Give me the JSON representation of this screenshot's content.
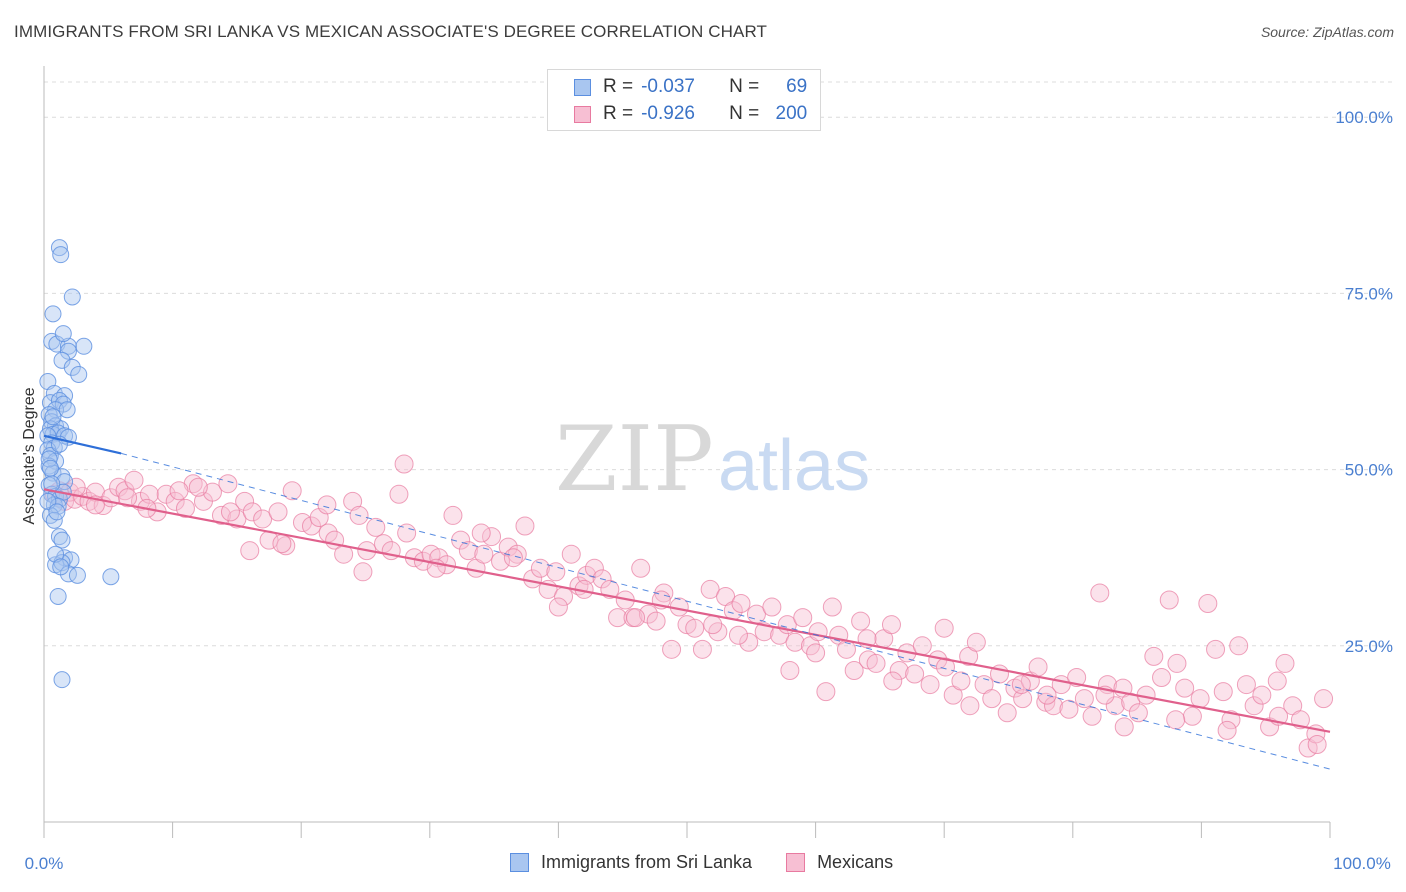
{
  "title": "IMMIGRANTS FROM SRI LANKA VS MEXICAN ASSOCIATE'S DEGREE CORRELATION CHART",
  "source": "Source: ZipAtlas.com",
  "watermark": {
    "zip": "ZIP",
    "atlas": "atlas"
  },
  "legend": {
    "r_label": "R =",
    "n_label": "N =",
    "series1": {
      "r": "-0.037",
      "n": "69"
    },
    "series2": {
      "r": "-0.926",
      "n": "200"
    }
  },
  "colors": {
    "blue": "#5b8fe0",
    "blue_fill": "#a9c6f0",
    "blue_line": "#2e6fd8",
    "pink": "#e87aa0",
    "pink_fill": "#f7bfd3",
    "pink_line": "#e0608c",
    "tick": "#4a7fd0",
    "grid": "#dcdcdc"
  },
  "chart_data": {
    "type": "scatter",
    "title": "IMMIGRANTS FROM SRI LANKA VS MEXICAN ASSOCIATE'S DEGREE CORRELATION CHART",
    "xlabel": "",
    "ylabel": "Associate's Degree",
    "xlim": [
      0,
      100
    ],
    "ylim": [
      0,
      105
    ],
    "x_tick_labels": [
      "0.0%",
      "100.0%"
    ],
    "y_ticks": [
      25,
      50,
      75,
      100
    ],
    "y_tick_labels": [
      "25.0%",
      "50.0%",
      "75.0%",
      "100.0%"
    ],
    "legend": [
      "Immigrants from Sri Lanka",
      "Mexicans"
    ],
    "series": [
      {
        "name": "Immigrants from Sri Lanka",
        "r": -0.037,
        "n": 69,
        "trend": {
          "x": [
            0,
            6
          ],
          "y": [
            54.8,
            52.3
          ]
        },
        "points": [
          [
            1.2,
            81.5
          ],
          [
            1.3,
            80.5
          ],
          [
            2.2,
            74.5
          ],
          [
            0.7,
            72.1
          ],
          [
            0.6,
            68.2
          ],
          [
            1.0,
            67.8
          ],
          [
            1.9,
            67.5
          ],
          [
            3.1,
            67.5
          ],
          [
            1.5,
            69.3
          ],
          [
            1.9,
            66.8
          ],
          [
            1.4,
            65.5
          ],
          [
            2.2,
            64.5
          ],
          [
            2.7,
            63.5
          ],
          [
            0.3,
            62.5
          ],
          [
            0.8,
            60.8
          ],
          [
            1.6,
            60.5
          ],
          [
            0.5,
            59.5
          ],
          [
            1.2,
            59.8
          ],
          [
            1.5,
            59.3
          ],
          [
            0.9,
            58.5
          ],
          [
            0.4,
            57.8
          ],
          [
            0.6,
            56.8
          ],
          [
            0.9,
            56.2
          ],
          [
            1.3,
            55.8
          ],
          [
            0.5,
            55.8
          ],
          [
            0.7,
            55.0
          ],
          [
            1.1,
            55.2
          ],
          [
            1.6,
            54.8
          ],
          [
            1.9,
            54.6
          ],
          [
            0.3,
            54.8
          ],
          [
            0.6,
            53.8
          ],
          [
            0.8,
            53.1
          ],
          [
            0.3,
            52.8
          ],
          [
            0.5,
            52.0
          ],
          [
            0.9,
            51.2
          ],
          [
            0.4,
            50.5
          ],
          [
            0.7,
            49.5
          ],
          [
            1.4,
            49.0
          ],
          [
            1.6,
            48.3
          ],
          [
            0.4,
            47.8
          ],
          [
            0.6,
            46.5
          ],
          [
            0.9,
            46.2
          ],
          [
            1.2,
            45.8
          ],
          [
            1.5,
            46.8
          ],
          [
            0.8,
            45.0
          ],
          [
            1.1,
            44.8
          ],
          [
            0.5,
            43.5
          ],
          [
            0.8,
            42.8
          ],
          [
            1.2,
            40.5
          ],
          [
            1.4,
            40.0
          ],
          [
            1.6,
            37.5
          ],
          [
            2.1,
            37.2
          ],
          [
            0.9,
            36.5
          ],
          [
            1.4,
            36.8
          ],
          [
            1.9,
            35.2
          ],
          [
            2.6,
            35.0
          ],
          [
            1.1,
            32.0
          ],
          [
            5.2,
            34.8
          ],
          [
            1.4,
            20.2
          ],
          [
            0.6,
            48.0
          ],
          [
            0.3,
            45.5
          ],
          [
            1.0,
            44.0
          ],
          [
            0.4,
            51.5
          ],
          [
            0.7,
            57.5
          ],
          [
            1.2,
            53.6
          ],
          [
            0.5,
            50.2
          ],
          [
            1.8,
            58.5
          ],
          [
            0.9,
            38.0
          ],
          [
            1.3,
            36.2
          ]
        ]
      },
      {
        "name": "Mexicans",
        "r": -0.926,
        "n": 200,
        "trend": {
          "x": [
            0,
            100
          ],
          "y": [
            47.2,
            12.8
          ]
        },
        "points": [
          [
            0.8,
            46.5
          ],
          [
            1.2,
            47.0
          ],
          [
            1.6,
            45.5
          ],
          [
            2.0,
            46.8
          ],
          [
            2.4,
            45.8
          ],
          [
            3.0,
            46.2
          ],
          [
            3.5,
            45.5
          ],
          [
            4.0,
            46.8
          ],
          [
            4.6,
            44.9
          ],
          [
            5.2,
            46.0
          ],
          [
            5.8,
            47.5
          ],
          [
            6.3,
            47.0
          ],
          [
            7.0,
            48.5
          ],
          [
            7.5,
            45.5
          ],
          [
            8.2,
            46.5
          ],
          [
            8.8,
            44.0
          ],
          [
            9.5,
            46.5
          ],
          [
            10.2,
            45.5
          ],
          [
            11.0,
            44.5
          ],
          [
            11.6,
            48.0
          ],
          [
            12.4,
            45.5
          ],
          [
            13.1,
            46.8
          ],
          [
            13.8,
            43.5
          ],
          [
            14.3,
            48.0
          ],
          [
            15.0,
            43.0
          ],
          [
            15.6,
            45.5
          ],
          [
            16.2,
            44.0
          ],
          [
            17.0,
            43.0
          ],
          [
            17.5,
            40.0
          ],
          [
            18.2,
            44.0
          ],
          [
            18.8,
            39.2
          ],
          [
            19.3,
            47.0
          ],
          [
            20.1,
            42.5
          ],
          [
            20.8,
            42.0
          ],
          [
            21.4,
            43.2
          ],
          [
            22.1,
            41.0
          ],
          [
            22.6,
            40.0
          ],
          [
            23.3,
            38.0
          ],
          [
            24.0,
            45.5
          ],
          [
            24.5,
            43.5
          ],
          [
            25.1,
            38.5
          ],
          [
            25.8,
            41.8
          ],
          [
            26.4,
            39.5
          ],
          [
            27.0,
            38.5
          ],
          [
            27.6,
            46.5
          ],
          [
            28.2,
            41.0
          ],
          [
            28.8,
            37.5
          ],
          [
            29.5,
            37.0
          ],
          [
            30.1,
            38.0
          ],
          [
            30.7,
            37.5
          ],
          [
            31.3,
            36.5
          ],
          [
            31.8,
            43.5
          ],
          [
            32.4,
            40.0
          ],
          [
            33.0,
            38.5
          ],
          [
            33.6,
            36.0
          ],
          [
            34.2,
            38.0
          ],
          [
            34.8,
            40.5
          ],
          [
            35.5,
            37.0
          ],
          [
            36.1,
            39.0
          ],
          [
            36.8,
            38.0
          ],
          [
            37.4,
            42.0
          ],
          [
            38.0,
            34.5
          ],
          [
            38.6,
            36.0
          ],
          [
            39.2,
            33.0
          ],
          [
            39.8,
            35.5
          ],
          [
            40.4,
            32.0
          ],
          [
            41.0,
            38.0
          ],
          [
            41.6,
            33.5
          ],
          [
            42.2,
            35.0
          ],
          [
            42.8,
            36.0
          ],
          [
            43.4,
            34.5
          ],
          [
            44.0,
            33.0
          ],
          [
            44.6,
            29.0
          ],
          [
            45.2,
            31.5
          ],
          [
            45.8,
            29.0
          ],
          [
            46.4,
            36.0
          ],
          [
            47.0,
            29.5
          ],
          [
            47.6,
            28.5
          ],
          [
            48.2,
            32.5
          ],
          [
            48.8,
            24.5
          ],
          [
            49.4,
            30.5
          ],
          [
            50.0,
            28.0
          ],
          [
            50.6,
            27.5
          ],
          [
            51.2,
            24.5
          ],
          [
            51.8,
            33.0
          ],
          [
            52.4,
            27.0
          ],
          [
            53.0,
            32.0
          ],
          [
            53.6,
            30.0
          ],
          [
            54.2,
            31.0
          ],
          [
            54.8,
            25.5
          ],
          [
            55.4,
            29.5
          ],
          [
            56.0,
            27.0
          ],
          [
            56.6,
            30.5
          ],
          [
            57.2,
            26.5
          ],
          [
            57.8,
            28.0
          ],
          [
            58.4,
            25.5
          ],
          [
            59.0,
            29.0
          ],
          [
            59.6,
            25.0
          ],
          [
            60.2,
            27.0
          ],
          [
            60.8,
            18.5
          ],
          [
            61.3,
            30.5
          ],
          [
            61.8,
            26.5
          ],
          [
            62.4,
            24.5
          ],
          [
            63.0,
            21.5
          ],
          [
            63.5,
            28.5
          ],
          [
            64.1,
            23.0
          ],
          [
            64.7,
            22.5
          ],
          [
            65.3,
            26.0
          ],
          [
            65.9,
            28.0
          ],
          [
            66.5,
            21.5
          ],
          [
            67.1,
            24.0
          ],
          [
            67.7,
            21.0
          ],
          [
            68.3,
            25.0
          ],
          [
            68.9,
            19.5
          ],
          [
            69.5,
            23.0
          ],
          [
            70.1,
            22.0
          ],
          [
            70.7,
            18.0
          ],
          [
            71.3,
            20.0
          ],
          [
            71.9,
            23.5
          ],
          [
            72.5,
            25.5
          ],
          [
            73.1,
            19.5
          ],
          [
            73.7,
            17.5
          ],
          [
            74.3,
            21.0
          ],
          [
            74.9,
            15.5
          ],
          [
            75.5,
            19.0
          ],
          [
            76.1,
            17.5
          ],
          [
            76.7,
            20.0
          ],
          [
            77.3,
            22.0
          ],
          [
            77.9,
            17.0
          ],
          [
            78.5,
            16.5
          ],
          [
            79.1,
            19.5
          ],
          [
            79.7,
            16.0
          ],
          [
            80.3,
            20.5
          ],
          [
            80.9,
            17.5
          ],
          [
            81.5,
            15.0
          ],
          [
            82.1,
            32.5
          ],
          [
            82.7,
            19.5
          ],
          [
            83.3,
            16.5
          ],
          [
            83.9,
            19.0
          ],
          [
            84.5,
            17.0
          ],
          [
            85.1,
            15.5
          ],
          [
            85.7,
            18.0
          ],
          [
            86.3,
            23.5
          ],
          [
            86.9,
            20.5
          ],
          [
            87.5,
            31.5
          ],
          [
            88.1,
            22.5
          ],
          [
            88.7,
            19.0
          ],
          [
            89.3,
            15.0
          ],
          [
            89.9,
            17.5
          ],
          [
            90.5,
            31.0
          ],
          [
            91.1,
            24.5
          ],
          [
            91.7,
            18.5
          ],
          [
            92.3,
            14.5
          ],
          [
            92.9,
            25.0
          ],
          [
            93.5,
            19.5
          ],
          [
            94.1,
            16.5
          ],
          [
            94.7,
            18.0
          ],
          [
            95.3,
            13.5
          ],
          [
            95.9,
            20.0
          ],
          [
            96.5,
            22.5
          ],
          [
            97.1,
            16.5
          ],
          [
            97.7,
            14.5
          ],
          [
            98.3,
            10.5
          ],
          [
            98.9,
            12.5
          ],
          [
            99.5,
            17.5
          ],
          [
            82.5,
            18.0
          ],
          [
            76.0,
            19.5
          ],
          [
            70.0,
            27.5
          ],
          [
            64.0,
            26.0
          ],
          [
            58.0,
            21.5
          ],
          [
            52.0,
            28.0
          ],
          [
            46.0,
            29.0
          ],
          [
            40.0,
            30.5
          ],
          [
            34.0,
            41.0
          ],
          [
            28.0,
            50.8
          ],
          [
            22.0,
            45.0
          ],
          [
            16.0,
            38.5
          ],
          [
            12.0,
            47.5
          ],
          [
            8.0,
            44.5
          ],
          [
            4.0,
            45.0
          ],
          [
            2.5,
            47.5
          ],
          [
            6.5,
            46.0
          ],
          [
            10.5,
            47.0
          ],
          [
            14.5,
            44.0
          ],
          [
            18.5,
            39.5
          ],
          [
            24.8,
            35.5
          ],
          [
            30.5,
            36.0
          ],
          [
            36.5,
            37.5
          ],
          [
            42.0,
            33.0
          ],
          [
            48.0,
            31.5
          ],
          [
            54.0,
            26.5
          ],
          [
            60.0,
            24.0
          ],
          [
            66.0,
            20.0
          ],
          [
            72.0,
            16.5
          ],
          [
            78.0,
            18.0
          ],
          [
            84.0,
            13.5
          ],
          [
            88.0,
            14.5
          ],
          [
            92.0,
            13.0
          ],
          [
            96.0,
            15.0
          ],
          [
            99.0,
            11.0
          ]
        ]
      }
    ]
  }
}
